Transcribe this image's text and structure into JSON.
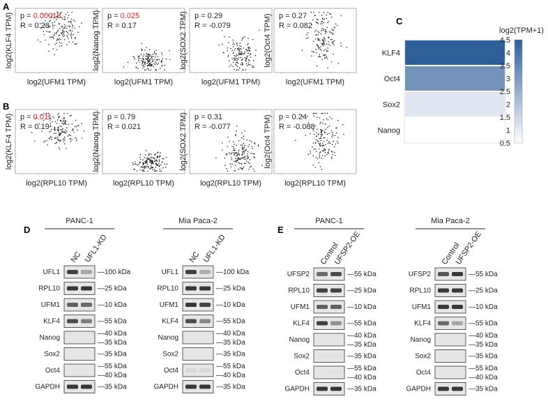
{
  "panels": {
    "A": "A",
    "B": "B",
    "C": "C",
    "D": "D",
    "E": "E"
  },
  "colors": {
    "pvalue_sig": "#e02020",
    "text": "#222222",
    "heat_high": "#2f5f99",
    "heat_low": "#ffffff"
  },
  "panel_a": [
    {
      "p_label": "p = ",
      "p": "0.00018",
      "p_sig": true,
      "r_label": "R = ",
      "r": "0.28",
      "ylabel": "log2(KLF4 TPM)",
      "xlabel": "log2(UFM1 TPM)",
      "cloud": "mid"
    },
    {
      "p_label": "p = ",
      "p": "0.025",
      "p_sig": true,
      "r_label": "R = ",
      "r": "0.17",
      "ylabel": "log2(Nanog TPM)",
      "xlabel": "log2(UFM1 TPM)",
      "cloud": "low"
    },
    {
      "p_label": "p = ",
      "p": "0.29",
      "p_sig": false,
      "r_label": "R = ",
      "r": "-0.079",
      "ylabel": "log2(SOX2 TPM)",
      "xlabel": "log2(UFM1 TPM)",
      "cloud": "lowmid"
    },
    {
      "p_label": "p = ",
      "p": "0.27",
      "p_sig": false,
      "r_label": "R = ",
      "r": "0.082",
      "ylabel": "log2(Oct4 TPM)",
      "xlabel": "log2(UFM1 TPM)",
      "cloud": "tall"
    }
  ],
  "panel_b": [
    {
      "p_label": "p = ",
      "p": "0.011",
      "p_sig": true,
      "r_label": "R = ",
      "r": "0.19",
      "ylabel": "log2(KLF4 TPM)",
      "xlabel": "log2(RPL10 TPM)",
      "cloud": "mid"
    },
    {
      "p_label": "p = ",
      "p": "0.79",
      "p_sig": false,
      "r_label": "R = ",
      "r": "0.021",
      "ylabel": "log2(Nanog TPM)",
      "xlabel": "log2(RPL10 TPM)",
      "cloud": "low"
    },
    {
      "p_label": "p = ",
      "p": "0.31",
      "p_sig": false,
      "r_label": "R = ",
      "r": "-0.077",
      "ylabel": "log2(SOX2 TPM)",
      "xlabel": "log2(RPL10 TPM)",
      "cloud": "lowmid"
    },
    {
      "p_label": "p = ",
      "p": "0.24",
      "p_sig": false,
      "r_label": "R = ",
      "r": "-0.088",
      "ylabel": "log2(Oct4 TPM)",
      "xlabel": "log2(RPL10 TPM)",
      "cloud": "tall"
    }
  ],
  "chart_data": {
    "type": "heatmap",
    "title": "",
    "rows": [
      "KLF4",
      "Oct4",
      "Sox2",
      "Nanog"
    ],
    "values": [
      4.5,
      3.2,
      1.1,
      0.5
    ],
    "colorbar": {
      "label": "log2(TPM+1)",
      "ticks": [
        "4.5",
        "4",
        "3.5",
        "3",
        "2.5",
        "2",
        "1.5",
        "1",
        "0.5"
      ],
      "min": 0.5,
      "max": 4.5
    }
  },
  "panel_d": {
    "lines": [
      {
        "title": "PANC-1",
        "lanes": [
          "NC",
          "UFL1-KD"
        ]
      },
      {
        "title": "Mia Paca-2",
        "lanes": [
          "NC",
          "UFL1-KD"
        ]
      }
    ],
    "rows": [
      {
        "protein": "UFL1",
        "markers": [
          "100 kDa"
        ],
        "blot": [
          [
            0.85,
            0.35
          ],
          [
            0.85,
            0.3
          ]
        ]
      },
      {
        "protein": "RPL10",
        "markers": [
          "25 kDa"
        ],
        "blot": [
          [
            0.9,
            0.9
          ],
          [
            0.9,
            0.9
          ]
        ]
      },
      {
        "protein": "UFM1",
        "markers": [
          "10 kDa"
        ],
        "blot": [
          [
            0.7,
            0.65
          ],
          [
            0.9,
            0.85
          ]
        ]
      },
      {
        "protein": "KLF4",
        "markers": [
          "55 kDa"
        ],
        "blot": [
          [
            0.8,
            0.55
          ],
          [
            0.8,
            0.5
          ]
        ]
      },
      {
        "protein": "Nanog",
        "markers": [
          "40 kDa",
          "35 kDa"
        ],
        "blot": [
          [
            0,
            0
          ],
          [
            0,
            0
          ]
        ]
      },
      {
        "protein": "Sox2",
        "markers": [
          "35 kDa"
        ],
        "blot": [
          [
            0,
            0
          ],
          [
            0,
            0
          ]
        ]
      },
      {
        "protein": "Oct4",
        "markers": [
          "55 kDa",
          "40 kDa"
        ],
        "blot": [
          [
            0,
            0
          ],
          [
            0.1,
            0.1
          ]
        ]
      },
      {
        "protein": "GAPDH",
        "markers": [
          "35 kDa"
        ],
        "blot": [
          [
            0.9,
            0.9
          ],
          [
            0.9,
            0.9
          ]
        ]
      }
    ]
  },
  "panel_e": {
    "lines": [
      {
        "title": "PANC-1",
        "lanes": [
          "Control",
          "UFSP2-OE"
        ]
      },
      {
        "title": "Mia Paca-2",
        "lanes": [
          "Control",
          "UFSP2-OE"
        ]
      }
    ],
    "rows": [
      {
        "protein": "UFSP2",
        "markers": [
          "55 kDa"
        ],
        "blot": [
          [
            0.65,
            0.8
          ],
          [
            0.75,
            0.9
          ]
        ]
      },
      {
        "protein": "RPL10",
        "markers": [
          "25 kDa"
        ],
        "blot": [
          [
            0.85,
            0.85
          ],
          [
            0.9,
            0.9
          ]
        ]
      },
      {
        "protein": "UFM1",
        "markers": [
          "10 kDa"
        ],
        "blot": [
          [
            0.7,
            0.7
          ],
          [
            0.9,
            0.9
          ]
        ]
      },
      {
        "protein": "KLF4",
        "markers": [
          "55 kDa"
        ],
        "blot": [
          [
            0.85,
            0.45
          ],
          [
            0.65,
            0.35
          ]
        ]
      },
      {
        "protein": "Nanog",
        "markers": [
          "40 kDa",
          "35 kDa"
        ],
        "blot": [
          [
            0,
            0
          ],
          [
            0,
            0
          ]
        ]
      },
      {
        "protein": "Sox2",
        "markers": [
          "35 kDa"
        ],
        "blot": [
          [
            0.05,
            0.05
          ],
          [
            0,
            0
          ]
        ]
      },
      {
        "protein": "Oct4",
        "markers": [
          "55 kDa",
          "40 kDa"
        ],
        "blot": [
          [
            0,
            0.05
          ],
          [
            0,
            0
          ]
        ]
      },
      {
        "protein": "GAPDH",
        "markers": [
          "35 kDa"
        ],
        "blot": [
          [
            0.9,
            0.9
          ],
          [
            0.9,
            0.9
          ]
        ]
      }
    ]
  }
}
